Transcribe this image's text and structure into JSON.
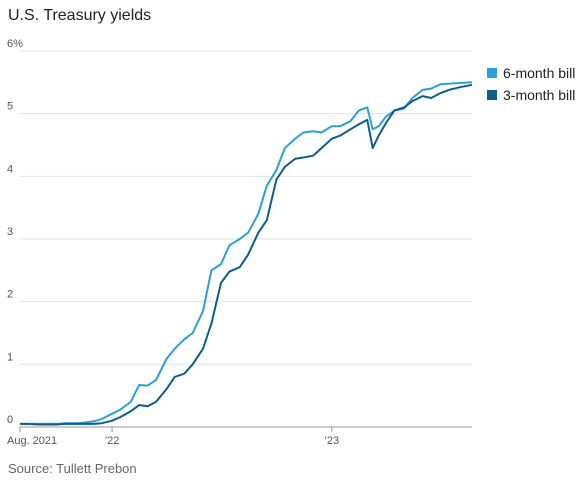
{
  "chart_data": {
    "type": "line",
    "title": "U.S. Treasury yields",
    "source": "Source: Tullett Prebon",
    "xlabel": "",
    "ylabel": "",
    "ylim": [
      0,
      6
    ],
    "yticks": [
      0,
      1,
      2,
      3,
      4,
      5,
      6
    ],
    "ytick_labels": [
      "0",
      "1",
      "2",
      "3",
      "4",
      "5",
      "6%"
    ],
    "xlim": [
      "2021-08-01",
      "2023-08-22"
    ],
    "xticks": [
      {
        "date": "2021-08-01",
        "label": "Aug. 2021"
      },
      {
        "date": "2022-01-01",
        "label": "’22"
      },
      {
        "date": "2023-01-01",
        "label": "’23"
      }
    ],
    "grid": true,
    "legend_position": "right",
    "series": [
      {
        "name": "6-month bill",
        "color": "#2ba0d8",
        "points": [
          [
            "2021-08-01",
            0.05
          ],
          [
            "2021-08-15",
            0.05
          ],
          [
            "2021-09-01",
            0.05
          ],
          [
            "2021-09-15",
            0.05
          ],
          [
            "2021-10-01",
            0.05
          ],
          [
            "2021-10-15",
            0.06
          ],
          [
            "2021-11-01",
            0.06
          ],
          [
            "2021-11-15",
            0.07
          ],
          [
            "2021-12-01",
            0.09
          ],
          [
            "2021-12-15",
            0.13
          ],
          [
            "2022-01-01",
            0.21
          ],
          [
            "2022-01-15",
            0.28
          ],
          [
            "2022-02-01",
            0.4
          ],
          [
            "2022-02-15",
            0.67
          ],
          [
            "2022-03-01",
            0.66
          ],
          [
            "2022-03-15",
            0.75
          ],
          [
            "2022-04-01",
            1.08
          ],
          [
            "2022-04-15",
            1.25
          ],
          [
            "2022-05-01",
            1.4
          ],
          [
            "2022-05-15",
            1.5
          ],
          [
            "2022-06-01",
            1.85
          ],
          [
            "2022-06-15",
            2.5
          ],
          [
            "2022-07-01",
            2.6
          ],
          [
            "2022-07-15",
            2.9
          ],
          [
            "2022-08-01",
            3.0
          ],
          [
            "2022-08-15",
            3.1
          ],
          [
            "2022-09-01",
            3.4
          ],
          [
            "2022-09-15",
            3.85
          ],
          [
            "2022-10-01",
            4.1
          ],
          [
            "2022-10-15",
            4.45
          ],
          [
            "2022-11-01",
            4.6
          ],
          [
            "2022-11-15",
            4.7
          ],
          [
            "2022-12-01",
            4.72
          ],
          [
            "2022-12-15",
            4.7
          ],
          [
            "2023-01-01",
            4.8
          ],
          [
            "2023-01-15",
            4.8
          ],
          [
            "2023-02-01",
            4.88
          ],
          [
            "2023-02-15",
            5.05
          ],
          [
            "2023-03-01",
            5.1
          ],
          [
            "2023-03-10",
            4.75
          ],
          [
            "2023-03-20",
            4.8
          ],
          [
            "2023-04-01",
            4.95
          ],
          [
            "2023-04-15",
            5.05
          ],
          [
            "2023-05-01",
            5.08
          ],
          [
            "2023-05-15",
            5.25
          ],
          [
            "2023-06-01",
            5.38
          ],
          [
            "2023-06-15",
            5.4
          ],
          [
            "2023-07-01",
            5.47
          ],
          [
            "2023-07-15",
            5.48
          ],
          [
            "2023-08-01",
            5.49
          ],
          [
            "2023-08-22",
            5.5
          ]
        ]
      },
      {
        "name": "3-month bill",
        "color": "#0d5f8a",
        "points": [
          [
            "2021-08-01",
            0.05
          ],
          [
            "2021-08-15",
            0.05
          ],
          [
            "2021-09-01",
            0.04
          ],
          [
            "2021-09-15",
            0.04
          ],
          [
            "2021-10-01",
            0.04
          ],
          [
            "2021-10-15",
            0.05
          ],
          [
            "2021-11-01",
            0.05
          ],
          [
            "2021-11-15",
            0.05
          ],
          [
            "2021-12-01",
            0.05
          ],
          [
            "2021-12-15",
            0.06
          ],
          [
            "2022-01-01",
            0.1
          ],
          [
            "2022-01-15",
            0.16
          ],
          [
            "2022-02-01",
            0.25
          ],
          [
            "2022-02-15",
            0.35
          ],
          [
            "2022-03-01",
            0.33
          ],
          [
            "2022-03-15",
            0.4
          ],
          [
            "2022-04-01",
            0.6
          ],
          [
            "2022-04-15",
            0.8
          ],
          [
            "2022-05-01",
            0.85
          ],
          [
            "2022-05-15",
            1.0
          ],
          [
            "2022-06-01",
            1.25
          ],
          [
            "2022-06-15",
            1.65
          ],
          [
            "2022-07-01",
            2.3
          ],
          [
            "2022-07-15",
            2.48
          ],
          [
            "2022-08-01",
            2.55
          ],
          [
            "2022-08-15",
            2.75
          ],
          [
            "2022-09-01",
            3.1
          ],
          [
            "2022-09-15",
            3.3
          ],
          [
            "2022-10-01",
            3.95
          ],
          [
            "2022-10-15",
            4.15
          ],
          [
            "2022-11-01",
            4.28
          ],
          [
            "2022-11-15",
            4.3
          ],
          [
            "2022-12-01",
            4.33
          ],
          [
            "2022-12-15",
            4.45
          ],
          [
            "2023-01-01",
            4.6
          ],
          [
            "2023-01-15",
            4.65
          ],
          [
            "2023-02-01",
            4.75
          ],
          [
            "2023-02-15",
            4.83
          ],
          [
            "2023-03-01",
            4.9
          ],
          [
            "2023-03-10",
            4.45
          ],
          [
            "2023-03-20",
            4.65
          ],
          [
            "2023-04-01",
            4.85
          ],
          [
            "2023-04-15",
            5.05
          ],
          [
            "2023-05-01",
            5.1
          ],
          [
            "2023-05-15",
            5.2
          ],
          [
            "2023-06-01",
            5.28
          ],
          [
            "2023-06-15",
            5.25
          ],
          [
            "2023-07-01",
            5.33
          ],
          [
            "2023-07-15",
            5.38
          ],
          [
            "2023-08-01",
            5.42
          ],
          [
            "2023-08-22",
            5.46
          ]
        ]
      }
    ]
  }
}
